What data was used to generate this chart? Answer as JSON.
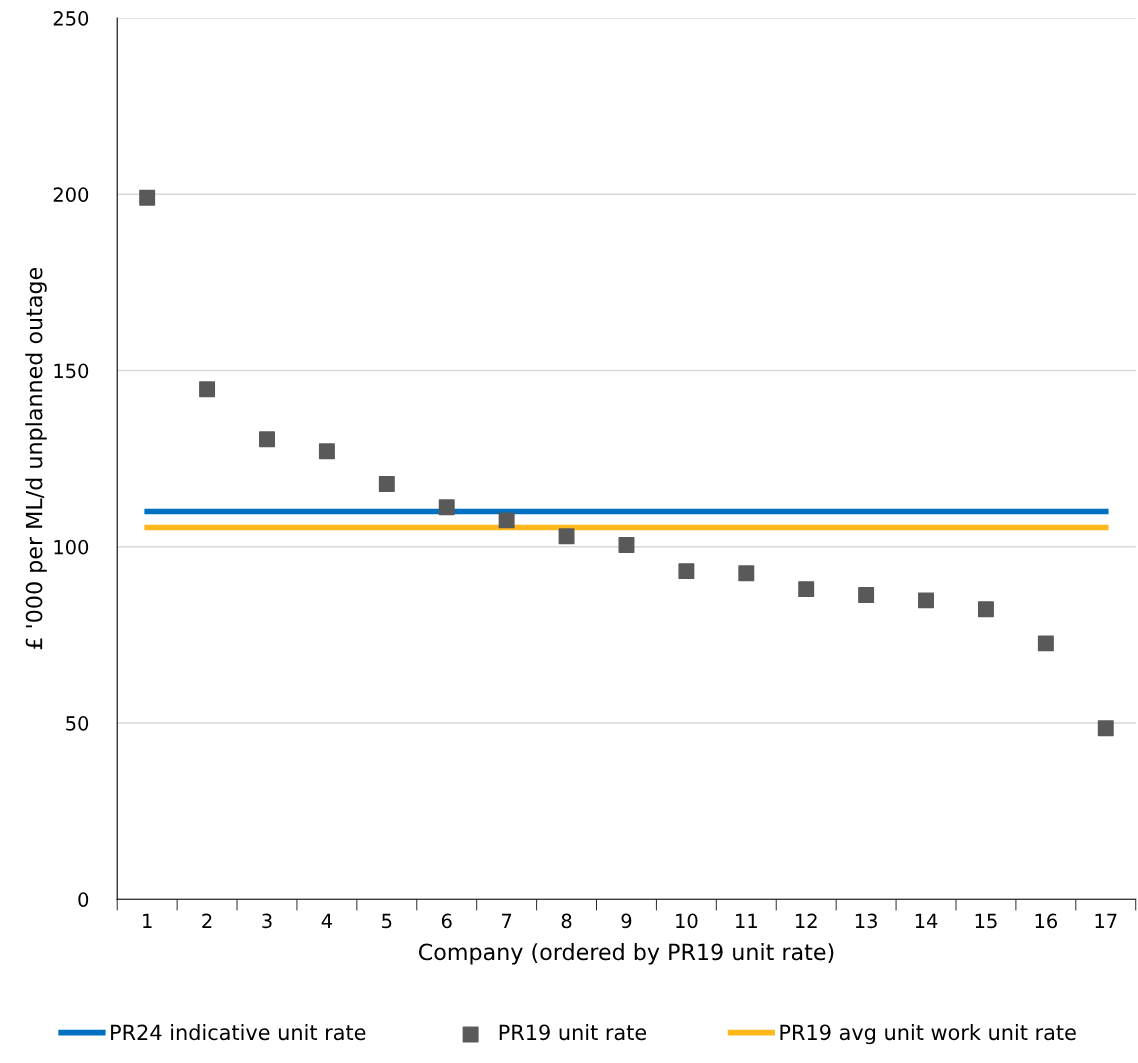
{
  "chart_data": {
    "type": "scatter",
    "xlabel": "Company (ordered by PR19 unit rate)",
    "ylabel": "£ '000 per ML/d unplanned outage",
    "categories": [
      "1",
      "2",
      "3",
      "4",
      "5",
      "6",
      "7",
      "8",
      "9",
      "10",
      "11",
      "12",
      "13",
      "14",
      "15",
      "16",
      "17"
    ],
    "series": [
      {
        "name": "PR24 indicative unit rate",
        "type": "line",
        "color": "#0070c0",
        "values": [
          110,
          110,
          110,
          110,
          110,
          110,
          110,
          110,
          110,
          110,
          110,
          110,
          110,
          110,
          110,
          110,
          110
        ]
      },
      {
        "name": "PR19 unit rate",
        "color": "#595959",
        "marker": "square",
        "values": [
          199,
          144.7,
          130.5,
          127.1,
          117.8,
          111.2,
          107.5,
          103,
          100.5,
          93.1,
          92.5,
          88,
          86.3,
          84.8,
          82.3,
          72.6,
          48.5
        ]
      },
      {
        "name": "PR19 avg unit work unit rate",
        "type": "line",
        "color": "#ffb81c",
        "values": [
          105.5,
          105.5,
          105.5,
          105.5,
          105.5,
          105.5,
          105.5,
          105.5,
          105.5,
          105.5,
          105.5,
          105.5,
          105.5,
          105.5,
          105.5,
          105.5,
          105.5
        ]
      }
    ],
    "ylim": [
      0,
      250
    ],
    "yticks": [
      0,
      50,
      100,
      150,
      200,
      250
    ],
    "grid": "y",
    "legend": "bottom"
  }
}
